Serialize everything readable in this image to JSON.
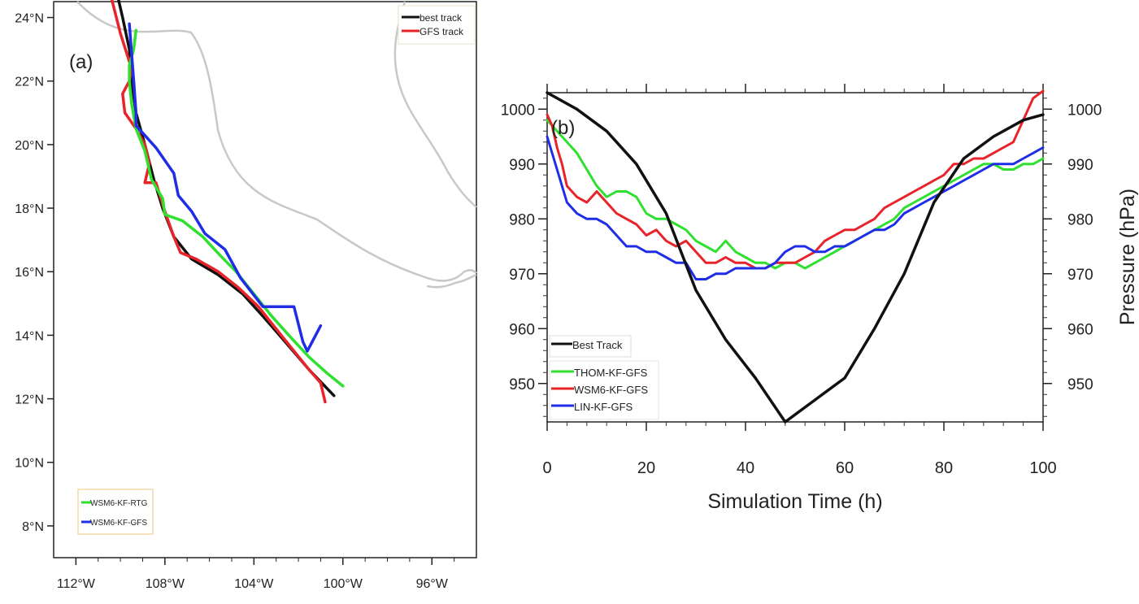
{
  "chart_data": [
    {
      "type": "line",
      "panel": "(a)",
      "description_kind": "track map",
      "xlabel": "",
      "ylabel": "",
      "xlim": [
        -113,
        -94
      ],
      "ylim": [
        7,
        24.5
      ],
      "x_tick_values": [
        -112,
        -108,
        -104,
        -100,
        -96
      ],
      "x_tick_labels": [
        "112°W",
        "108°W",
        "104°W",
        "100°W",
        "96°W"
      ],
      "y_tick_values": [
        8,
        10,
        12,
        14,
        16,
        18,
        20,
        22,
        24
      ],
      "y_tick_labels": [
        "8°N",
        "10°N",
        "12°N",
        "14°N",
        "16°N",
        "18°N",
        "20°N",
        "22°N",
        "24°N"
      ],
      "legend_top_right": [
        "best track",
        "GFS track"
      ],
      "legend_bottom_left": [
        "WSM6-KF-RTG",
        "WSM6-KF-GFS"
      ],
      "series": [
        {
          "name": "best track",
          "color": "#111111",
          "x": [
            -100.4,
            -101.5,
            -102.6,
            -103.6,
            -104.5,
            -105.6,
            -106.8,
            -107.6,
            -108.1,
            -108.5,
            -108.9,
            -109.3,
            -109.5,
            -109.6,
            -109.9,
            -110.1
          ],
          "y": [
            12.1,
            12.9,
            13.8,
            14.6,
            15.3,
            15.9,
            16.4,
            17.1,
            18.0,
            18.9,
            20.0,
            21.0,
            22.0,
            23.0,
            24.0,
            24.6
          ]
        },
        {
          "name": "GFS track",
          "color": "#e8242a",
          "x": [
            -100.8,
            -101.0,
            -101.5,
            -102.2,
            -103.0,
            -103.8,
            -104.7,
            -105.6,
            -106.6,
            -107.3,
            -107.6,
            -108.0,
            -108.4,
            -108.9,
            -108.7,
            -108.9,
            -109.3,
            -109.8,
            -109.9,
            -109.6,
            -109.5,
            -110.0,
            -110.4
          ],
          "y": [
            11.9,
            12.5,
            12.9,
            13.5,
            14.2,
            14.9,
            15.5,
            16.0,
            16.4,
            16.6,
            17.1,
            17.9,
            18.8,
            18.8,
            19.4,
            20.0,
            20.5,
            21.0,
            21.6,
            22.0,
            22.4,
            23.5,
            24.6
          ]
        },
        {
          "name": "WSM6-KF-RTG",
          "color": "#2fe02f",
          "x": [
            -100.0,
            -100.7,
            -101.5,
            -102.3,
            -103.2,
            -104.0,
            -104.8,
            -105.5,
            -106.3,
            -107.2,
            -108.0,
            -108.1,
            -108.6,
            -108.9,
            -109.3,
            -109.5,
            -109.6,
            -109.6,
            -109.4,
            -109.3
          ],
          "y": [
            12.4,
            12.8,
            13.3,
            13.9,
            14.6,
            15.3,
            16.0,
            16.5,
            17.1,
            17.6,
            17.8,
            18.3,
            18.9,
            19.8,
            20.5,
            21.3,
            22.0,
            22.5,
            23.0,
            23.6
          ]
        },
        {
          "name": "WSM6-KF-GFS",
          "color": "#1f2ee6",
          "x": [
            -101.0,
            -101.6,
            -101.8,
            -102.2,
            -102.6,
            -103.6,
            -104.6,
            -105.3,
            -106.2,
            -106.8,
            -107.4,
            -107.6,
            -108.4,
            -109.3,
            -109.3,
            -109.4,
            -109.5,
            -109.6
          ],
          "y": [
            14.3,
            13.5,
            13.8,
            14.9,
            14.9,
            14.9,
            15.8,
            16.7,
            17.2,
            17.9,
            18.4,
            19.1,
            19.9,
            20.6,
            21.0,
            22.0,
            22.9,
            23.8
          ]
        }
      ]
    },
    {
      "type": "line",
      "panel": "(b)",
      "xlabel": "Simulation Time (h)",
      "ylabel": "Pressure (hPa)",
      "xlim": [
        0,
        100
      ],
      "ylim": [
        943,
        1003
      ],
      "x_ticks": [
        0,
        20,
        40,
        60,
        80,
        100
      ],
      "y_ticks": [
        950,
        960,
        970,
        980,
        990,
        1000
      ],
      "series": [
        {
          "name": "Best Track",
          "color": "#111111",
          "x": [
            0,
            6,
            12,
            18,
            24,
            30,
            36,
            42,
            48,
            54,
            60,
            66,
            72,
            78,
            84,
            90,
            96,
            100
          ],
          "y": [
            1003,
            1000,
            996,
            990,
            981,
            967,
            958,
            951,
            943,
            947,
            951,
            960,
            970,
            983,
            991,
            995,
            998,
            999
          ]
        },
        {
          "name": "THOM-KF-GFS",
          "color": "#2fe02f",
          "x": [
            0,
            2,
            4,
            6,
            8,
            10,
            12,
            14,
            16,
            18,
            20,
            22,
            24,
            26,
            28,
            30,
            32,
            34,
            36,
            38,
            40,
            42,
            44,
            46,
            48,
            50,
            52,
            54,
            56,
            58,
            60,
            62,
            64,
            66,
            68,
            70,
            72,
            74,
            76,
            78,
            80,
            82,
            84,
            86,
            88,
            90,
            92,
            94,
            96,
            98,
            100
          ],
          "y": [
            998,
            996,
            994,
            992,
            989,
            986,
            984,
            985,
            985,
            984,
            981,
            980,
            980,
            979,
            978,
            976,
            975,
            974,
            976,
            974,
            973,
            972,
            972,
            971,
            972,
            972,
            971,
            972,
            973,
            974,
            975,
            976,
            977,
            978,
            979,
            980,
            982,
            983,
            984,
            985,
            986,
            987,
            988,
            989,
            990,
            990,
            989,
            989,
            990,
            990,
            991
          ]
        },
        {
          "name": "WSM6-KF-GFS",
          "color": "#e8242a",
          "x": [
            0,
            1,
            2,
            3,
            4,
            6,
            8,
            10,
            12,
            14,
            16,
            18,
            20,
            22,
            24,
            26,
            28,
            30,
            32,
            34,
            36,
            38,
            40,
            42,
            44,
            46,
            48,
            50,
            52,
            54,
            56,
            58,
            60,
            62,
            64,
            66,
            68,
            70,
            72,
            74,
            76,
            78,
            80,
            82,
            84,
            86,
            88,
            90,
            92,
            94,
            96,
            98,
            100
          ],
          "y": [
            999,
            997,
            993,
            990,
            986,
            984,
            983,
            985,
            983,
            981,
            980,
            979,
            977,
            978,
            976,
            975,
            976,
            974,
            972,
            972,
            973,
            972,
            972,
            971,
            971,
            972,
            972,
            972,
            973,
            974,
            976,
            977,
            978,
            978,
            979,
            980,
            982,
            983,
            984,
            985,
            986,
            987,
            988,
            990,
            990,
            991,
            991,
            992,
            993,
            994,
            998,
            1002,
            1004
          ]
        },
        {
          "name": "LIN-KF-GFS",
          "color": "#1f2ee6",
          "x": [
            0,
            2,
            4,
            6,
            8,
            10,
            12,
            14,
            16,
            18,
            20,
            22,
            24,
            26,
            28,
            30,
            32,
            34,
            36,
            38,
            40,
            42,
            44,
            46,
            48,
            50,
            52,
            54,
            56,
            58,
            60,
            62,
            64,
            66,
            68,
            70,
            72,
            74,
            76,
            78,
            80,
            82,
            84,
            86,
            88,
            90,
            92,
            94,
            96,
            98,
            100
          ],
          "y": [
            995,
            989,
            983,
            981,
            980,
            980,
            979,
            977,
            975,
            975,
            974,
            974,
            973,
            972,
            972,
            969,
            969,
            970,
            970,
            971,
            971,
            971,
            971,
            972,
            974,
            975,
            975,
            974,
            974,
            975,
            975,
            976,
            977,
            978,
            978,
            979,
            981,
            982,
            983,
            984,
            985,
            986,
            987,
            988,
            989,
            990,
            990,
            990,
            991,
            992,
            993
          ]
        }
      ]
    }
  ]
}
